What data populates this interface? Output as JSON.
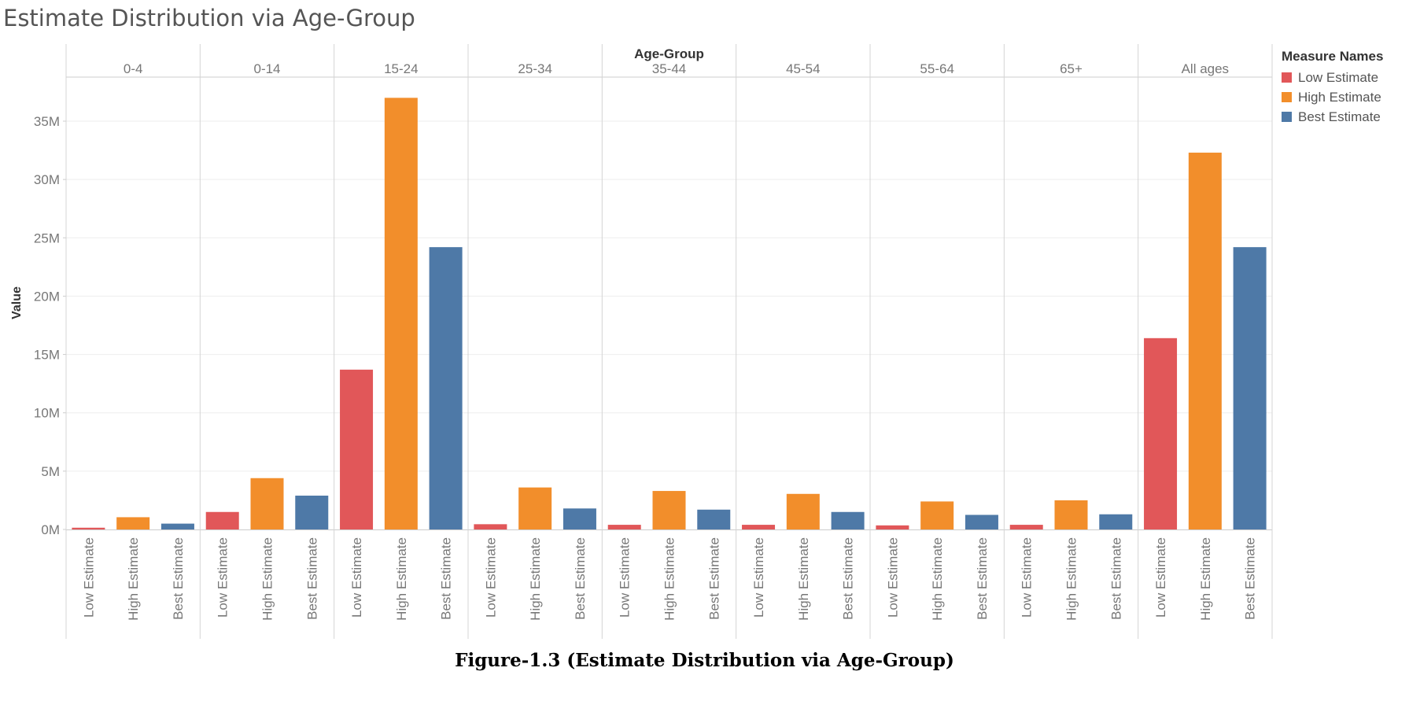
{
  "title": "Estimate Distribution via Age-Group",
  "caption": "Figure-1.3 (Estimate Distribution via Age-Group)",
  "legend": {
    "title": "Measure Names",
    "items": [
      {
        "label": "Low Estimate",
        "color": "#e15759"
      },
      {
        "label": "High Estimate",
        "color": "#f28e2b"
      },
      {
        "label": "Best Estimate",
        "color": "#4e79a7"
      }
    ]
  },
  "chart_data": {
    "type": "bar",
    "title": "Estimate Distribution via Age-Group",
    "column_header": "Age-Group",
    "xlabel": "",
    "ylabel": "Value",
    "categories": [
      "0-4",
      "0-14",
      "15-24",
      "25-34",
      "35-44",
      "45-54",
      "55-64",
      "65+",
      "All ages"
    ],
    "measures": [
      "Low Estimate",
      "High Estimate",
      "Best Estimate"
    ],
    "series": [
      {
        "name": "Low Estimate",
        "color": "#e15759",
        "values": [
          0.15,
          1.5,
          13.7,
          0.45,
          0.4,
          0.4,
          0.35,
          0.4,
          16.4
        ]
      },
      {
        "name": "High Estimate",
        "color": "#f28e2b",
        "values": [
          1.05,
          4.4,
          37.0,
          3.6,
          3.3,
          3.05,
          2.4,
          2.5,
          32.3
        ]
      },
      {
        "name": "Best Estimate",
        "color": "#4e79a7",
        "values": [
          0.5,
          2.9,
          24.2,
          1.8,
          1.7,
          1.5,
          1.25,
          1.3,
          24.2
        ]
      }
    ],
    "ylim": [
      0,
      38.5
    ],
    "yticks": [
      0,
      5,
      10,
      15,
      20,
      25,
      30,
      35
    ],
    "ytick_labels": [
      "0M",
      "5M",
      "10M",
      "15M",
      "20M",
      "25M",
      "30M",
      "35M"
    ],
    "grid": true,
    "legend_position": "right"
  }
}
